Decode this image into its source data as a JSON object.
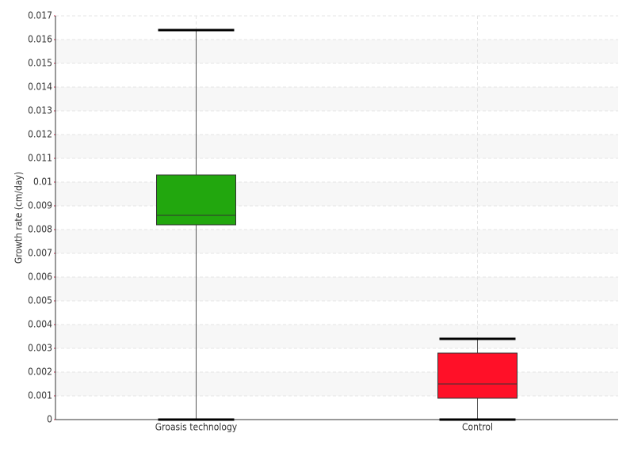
{
  "chart_data": {
    "type": "box",
    "y_label": "Growth rate (cm/day)",
    "categories": [
      "Groasis technology",
      "Control"
    ],
    "boxes": [
      {
        "min": 0,
        "q1": 0.0082,
        "median": 0.0086,
        "q3": 0.0103,
        "max": 0.0164,
        "color": "#22a70e"
      },
      {
        "min": 0,
        "q1": 0.0009,
        "median": 0.0015,
        "q3": 0.0028,
        "max": 0.0034,
        "color": "#ff1028"
      }
    ],
    "ylim": [
      0,
      0.017
    ],
    "yticks": [
      0,
      0.001,
      0.002,
      0.003,
      0.004,
      0.005,
      0.006,
      0.007,
      0.008,
      0.009,
      0.01,
      0.011,
      0.012,
      0.013,
      0.014,
      0.015,
      0.016,
      0.017
    ],
    "grid": true
  }
}
